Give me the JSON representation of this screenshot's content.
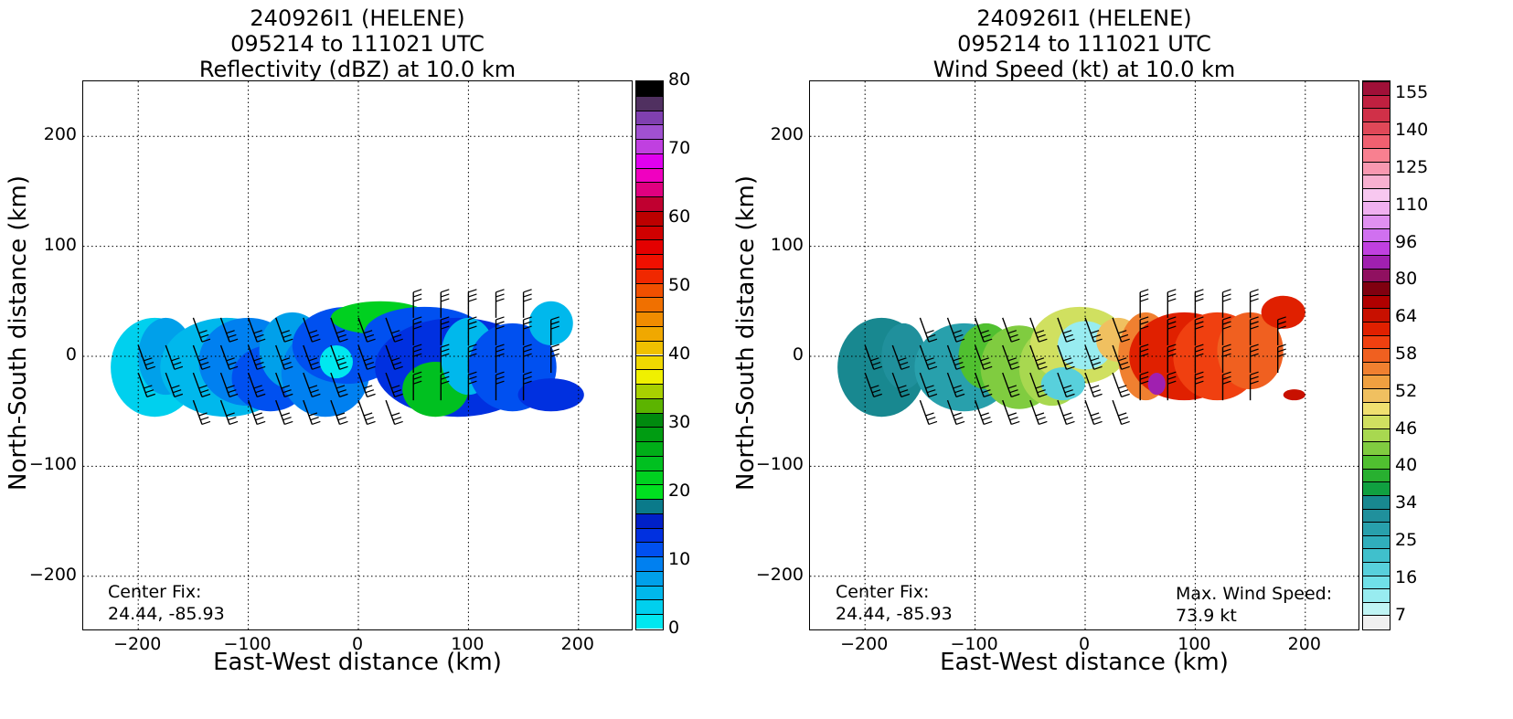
{
  "chart_data": [
    {
      "type": "heatmap",
      "title_lines": [
        "240926I1 (HELENE)",
        "095214 to 111021 UTC",
        "Reflectivity (dBZ) at 10.0 km"
      ],
      "xlabel": "East-West distance (km)",
      "ylabel": "North-South distance (km)",
      "xlim": [
        -250,
        250
      ],
      "ylim": [
        -250,
        250
      ],
      "xticks": [
        -200,
        -100,
        0,
        100,
        200
      ],
      "yticks": [
        -200,
        -100,
        0,
        100,
        200
      ],
      "xtick_labels": [
        "−200",
        "−100",
        "0",
        "100",
        "200"
      ],
      "ytick_labels": [
        "−200",
        "−100",
        "0",
        "100",
        "200"
      ],
      "grid": true,
      "colorbar": {
        "range": [
          0,
          80
        ],
        "tick_values": [
          0,
          10,
          20,
          30,
          40,
          50,
          60,
          70,
          80
        ],
        "tick_labels": [
          "0",
          "10",
          "20",
          "30",
          "40",
          "50",
          "60",
          "70",
          "80"
        ],
        "colors": [
          "#00e8f0",
          "#00d0ee",
          "#00b8ec",
          "#00a0ea",
          "#0080f0",
          "#0050f0",
          "#0030e0",
          "#0020c8",
          "#0a7a8a",
          "#00e020",
          "#00d020",
          "#00c020",
          "#00ae18",
          "#009c12",
          "#008a0e",
          "#5cb400",
          "#a8d000",
          "#f0f000",
          "#f0d800",
          "#f0c000",
          "#f0a800",
          "#f08c00",
          "#f07000",
          "#f05000",
          "#f02800",
          "#f01000",
          "#e40000",
          "#d00000",
          "#bc0000",
          "#c00030",
          "#e00080",
          "#f000c0",
          "#e000f0",
          "#c040e0",
          "#a050d0",
          "#8040b0",
          "#503060",
          "#000000"
        ]
      },
      "annotations": [
        "Center Fix:",
        "24.44, -85.93"
      ],
      "wind_barbs": true
    },
    {
      "type": "heatmap",
      "title_lines": [
        "240926I1 (HELENE)",
        "095214 to 111021 UTC",
        "Wind Speed (kt) at 10.0 km"
      ],
      "xlabel": "East-West distance (km)",
      "ylabel": "North-South distance (km)",
      "xlim": [
        -250,
        250
      ],
      "ylim": [
        -250,
        250
      ],
      "xticks": [
        -200,
        -100,
        0,
        100,
        200
      ],
      "yticks": [
        -200,
        -100,
        0,
        100,
        200
      ],
      "xtick_labels": [
        "−200",
        "−100",
        "0",
        "100",
        "200"
      ],
      "ytick_labels": [
        "−200",
        "−100",
        "0",
        "100",
        "200"
      ],
      "grid": true,
      "colorbar": {
        "tick_labels": [
          "7",
          "16",
          "25",
          "34",
          "40",
          "46",
          "52",
          "58",
          "64",
          "80",
          "96",
          "110",
          "125",
          "140",
          "155"
        ],
        "colors": [
          "#f0f0f0",
          "#c0f4f4",
          "#98ecf0",
          "#70e0e8",
          "#58d0dc",
          "#40c0cc",
          "#30aebc",
          "#28a0ac",
          "#20909c",
          "#188890",
          "#10a040",
          "#28b030",
          "#50c030",
          "#80cc40",
          "#a8d850",
          "#d0e060",
          "#f0e070",
          "#f0c060",
          "#f0a040",
          "#f08030",
          "#f06020",
          "#f04010",
          "#e02000",
          "#c81000",
          "#b00000",
          "#800010",
          "#901060",
          "#a020b0",
          "#c040e0",
          "#d070f0",
          "#e090f0",
          "#f0b0f0",
          "#f8c8f0",
          "#f8b0d0",
          "#f898b0",
          "#f88090",
          "#f06070",
          "#e04858",
          "#d03048",
          "#c02040",
          "#a01038"
        ]
      },
      "annotations": [
        "Center Fix:",
        "24.44, -85.93",
        "Max. Wind Speed:",
        "73.9 kt"
      ],
      "wind_barbs": true
    }
  ]
}
